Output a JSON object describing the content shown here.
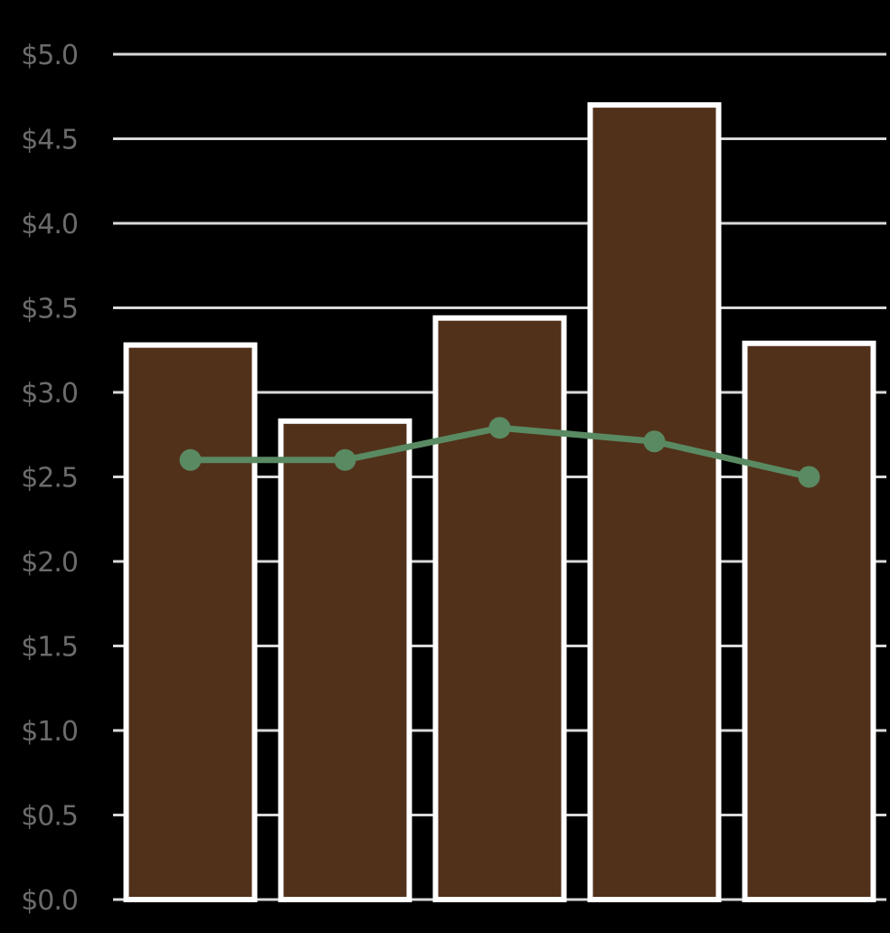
{
  "chart_data": {
    "type": "bar",
    "categories": [
      "",
      "",
      "",
      "",
      ""
    ],
    "ylim": [
      0,
      5
    ],
    "yticks": [
      0,
      0.5,
      1,
      1.5,
      2,
      2.5,
      3,
      3.5,
      4,
      4.5,
      5
    ],
    "ytick_labels": [
      "$0.0",
      "$0.5",
      "$1.0",
      "$1.5",
      "$2.0",
      "$2.5",
      "$3.0",
      "$3.5",
      "$4.0",
      "$4.5",
      "$5.0"
    ],
    "grid": true,
    "series": [
      {
        "type": "bar",
        "values": [
          3.28,
          2.83,
          3.44,
          4.7,
          3.29
        ],
        "color": "#52311b",
        "edge_color": "#ffffff"
      },
      {
        "type": "line",
        "values": [
          2.6,
          2.6,
          2.79,
          2.71,
          2.5
        ],
        "color": "#5a8a62"
      }
    ]
  }
}
